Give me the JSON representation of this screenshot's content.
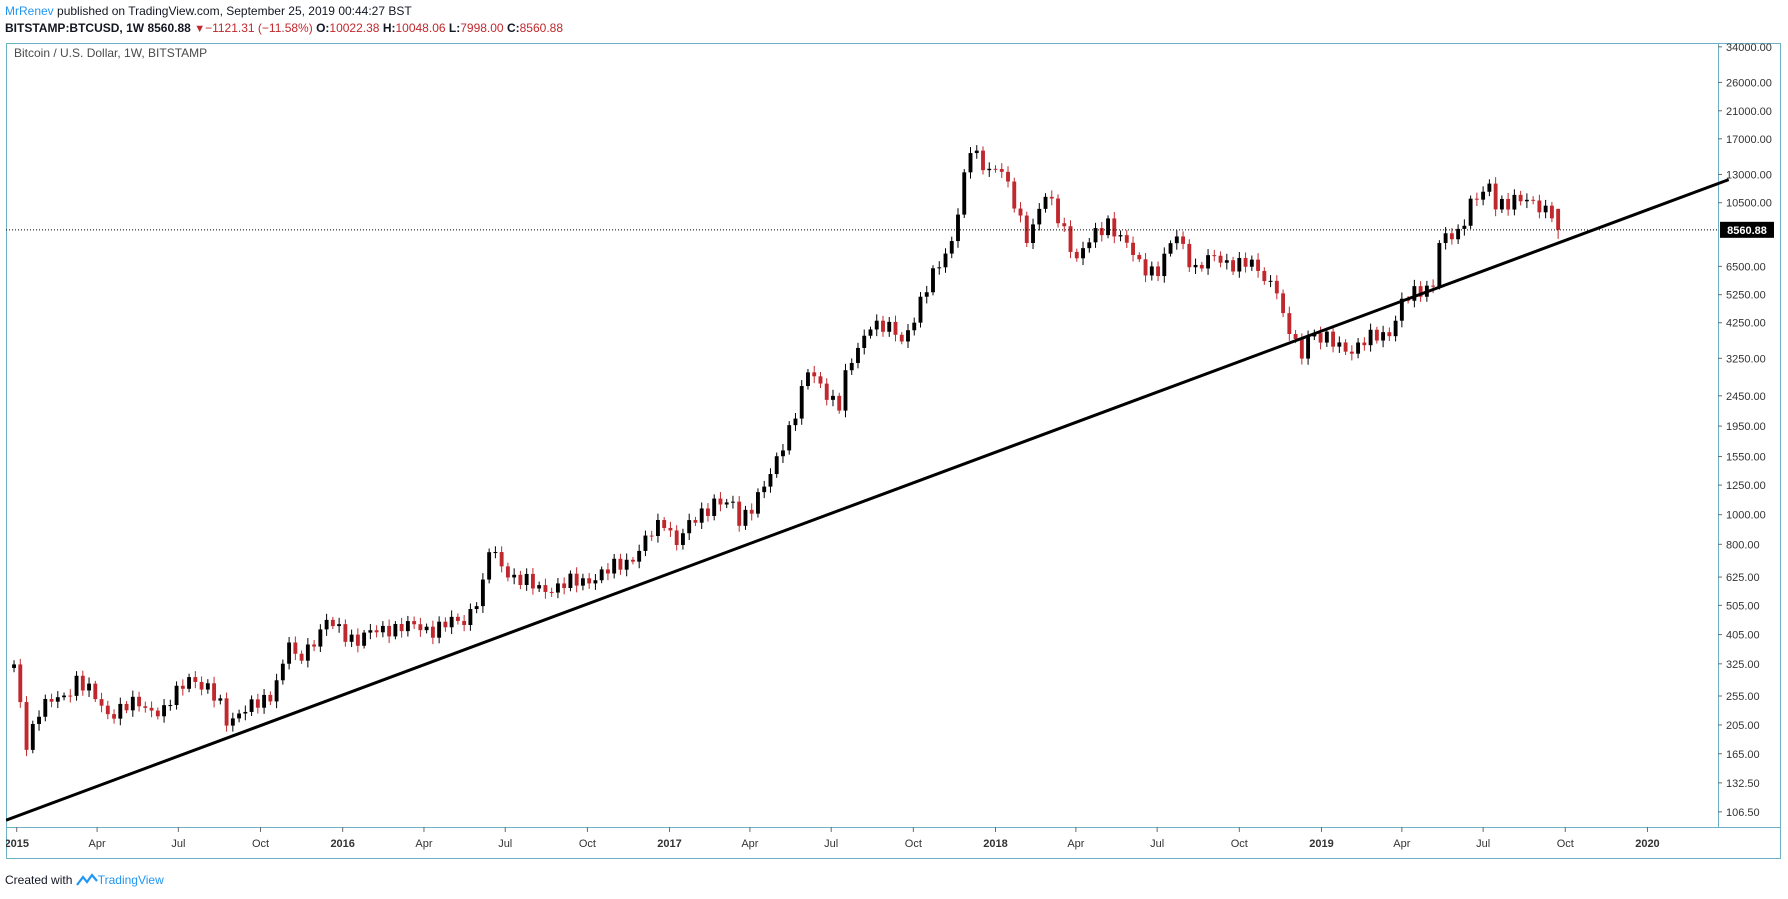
{
  "header": {
    "author": "MrRenev",
    "published_text": " published on TradingView.com, September 25, 2019 00:44:27 BST",
    "symbol": "BITSTAMP:BTCUSD, 1W",
    "last": "8560.88",
    "change": "−1121.31 (−11.58%)",
    "o_label": "O:",
    "o_value": "10022.38",
    "h_label": "H:",
    "h_value": "10048.06",
    "l_label": "L:",
    "l_value": "7998.00",
    "c_label": "C:",
    "c_value": "8560.88"
  },
  "footer": {
    "created_with": "Created with",
    "brand": "TradingView"
  },
  "colors": {
    "up": "#000000",
    "down": "#c0282d",
    "frame": "#6fb1c4",
    "brand": "#2196f3",
    "trendline": "#000000"
  },
  "chart_data": {
    "type": "candlestick",
    "title": "Bitcoin / U.S. Dollar, 1W, BITSTAMP",
    "y_scale": "log",
    "ylim": [
      95,
      35000
    ],
    "y_ticks": [
      34000,
      26000,
      21000,
      17000,
      13000,
      10500,
      6500,
      5250,
      4250,
      3250,
      2450,
      1950,
      1550,
      1250,
      1000,
      800,
      625,
      505,
      405,
      325,
      255,
      205,
      165,
      132.5,
      106.5
    ],
    "y_tick_labels": [
      "34000.00",
      "26000.00",
      "21000.00",
      "17000.00",
      "13000.00",
      "10500.00",
      "6500.00",
      "5250.00",
      "4250.00",
      "3250.00",
      "2450.00",
      "1950.00",
      "1550.00",
      "1250.00",
      "1000.00",
      "800.00",
      "625.00",
      "505.00",
      "405.00",
      "325.00",
      "255.00",
      "205.00",
      "165.00",
      "132.50",
      "106.50"
    ],
    "x_ticks": [
      "2015",
      "Apr",
      "Jul",
      "Oct",
      "2016",
      "Apr",
      "Jul",
      "Oct",
      "2017",
      "Apr",
      "Jul",
      "Oct",
      "2018",
      "Apr",
      "Jul",
      "Oct",
      "2019",
      "Apr",
      "Jul",
      "Oct",
      "2020"
    ],
    "x_tick_dates": [
      "2015-01-01",
      "2015-04-01",
      "2015-07-01",
      "2015-10-01",
      "2016-01-01",
      "2016-04-01",
      "2016-07-01",
      "2016-10-01",
      "2017-01-01",
      "2017-04-01",
      "2017-07-01",
      "2017-10-01",
      "2018-01-01",
      "2018-04-01",
      "2018-07-01",
      "2018-10-01",
      "2019-01-01",
      "2019-04-01",
      "2019-07-01",
      "2019-10-01",
      "2020-01-01"
    ],
    "x_bold": [
      "2015",
      "2016",
      "2017",
      "2018",
      "2019",
      "2020"
    ],
    "last_price": 8560.88,
    "last_price_label": "8560.88",
    "trendline": {
      "p1": [
        "2014-12-20",
        100
      ],
      "p2": [
        "2020-04-01",
        12500
      ]
    },
    "anchors": [
      [
        "2014-12-29",
        315
      ],
      [
        "2015-01-12",
        180
      ],
      [
        "2015-01-26",
        230
      ],
      [
        "2015-02-23",
        255
      ],
      [
        "2015-03-09",
        290
      ],
      [
        "2015-04-13",
        225
      ],
      [
        "2015-05-18",
        240
      ],
      [
        "2015-06-15",
        225
      ],
      [
        "2015-07-13",
        300
      ],
      [
        "2015-08-17",
        240
      ],
      [
        "2015-08-24",
        215
      ],
      [
        "2015-09-21",
        232
      ],
      [
        "2015-10-12",
        260
      ],
      [
        "2015-10-26",
        320
      ],
      [
        "2015-11-02",
        380
      ],
      [
        "2015-11-09",
        330
      ],
      [
        "2015-12-14",
        440
      ],
      [
        "2016-01-18",
        390
      ],
      [
        "2016-02-22",
        430
      ],
      [
        "2016-04-11",
        425
      ],
      [
        "2016-05-16",
        450
      ],
      [
        "2016-06-06",
        580
      ],
      [
        "2016-06-13",
        760
      ],
      [
        "2016-07-04",
        650
      ],
      [
        "2016-08-01",
        580
      ],
      [
        "2016-08-08",
        570
      ],
      [
        "2016-09-19",
        600
      ],
      [
        "2016-10-24",
        650
      ],
      [
        "2016-11-21",
        730
      ],
      [
        "2016-12-26",
        960
      ],
      [
        "2017-01-09",
        820
      ],
      [
        "2017-02-20",
        1120
      ],
      [
        "2017-03-13",
        1050
      ],
      [
        "2017-03-20",
        950
      ],
      [
        "2017-04-24",
        1320
      ],
      [
        "2017-05-22",
        2200
      ],
      [
        "2017-06-05",
        2900
      ],
      [
        "2017-07-10",
        2300
      ],
      [
        "2017-07-17",
        2800
      ],
      [
        "2017-08-14",
        4300
      ],
      [
        "2017-09-11",
        3900
      ],
      [
        "2017-09-18",
        3700
      ],
      [
        "2017-10-23",
        6000
      ],
      [
        "2017-11-13",
        8000
      ],
      [
        "2017-12-04",
        15500
      ],
      [
        "2017-12-18",
        14000
      ],
      [
        "2018-01-08",
        13500
      ],
      [
        "2018-01-15",
        11500
      ],
      [
        "2018-02-05",
        8200
      ],
      [
        "2018-02-26",
        11000
      ],
      [
        "2018-03-19",
        8600
      ],
      [
        "2018-04-02",
        6900
      ],
      [
        "2018-05-07",
        9200
      ],
      [
        "2018-06-11",
        6600
      ],
      [
        "2018-07-02",
        6300
      ],
      [
        "2018-07-23",
        8200
      ],
      [
        "2018-08-13",
        6400
      ],
      [
        "2018-09-03",
        6900
      ],
      [
        "2018-10-15",
        6500
      ],
      [
        "2018-11-12",
        5600
      ],
      [
        "2018-11-19",
        4300
      ],
      [
        "2018-12-10",
        3300
      ],
      [
        "2018-12-17",
        4000
      ],
      [
        "2019-01-14",
        3600
      ],
      [
        "2019-02-04",
        3500
      ],
      [
        "2019-03-18",
        4000
      ],
      [
        "2019-04-01",
        4900
      ],
      [
        "2019-05-06",
        5800
      ],
      [
        "2019-05-13",
        7800
      ],
      [
        "2019-06-03",
        8200
      ],
      [
        "2019-06-17",
        10800
      ],
      [
        "2019-07-08",
        11500
      ],
      [
        "2019-07-15",
        10200
      ],
      [
        "2019-08-05",
        11000
      ],
      [
        "2019-08-26",
        10200
      ],
      [
        "2019-09-16",
        10022
      ],
      [
        "2019-09-23",
        8560.88
      ]
    ]
  }
}
